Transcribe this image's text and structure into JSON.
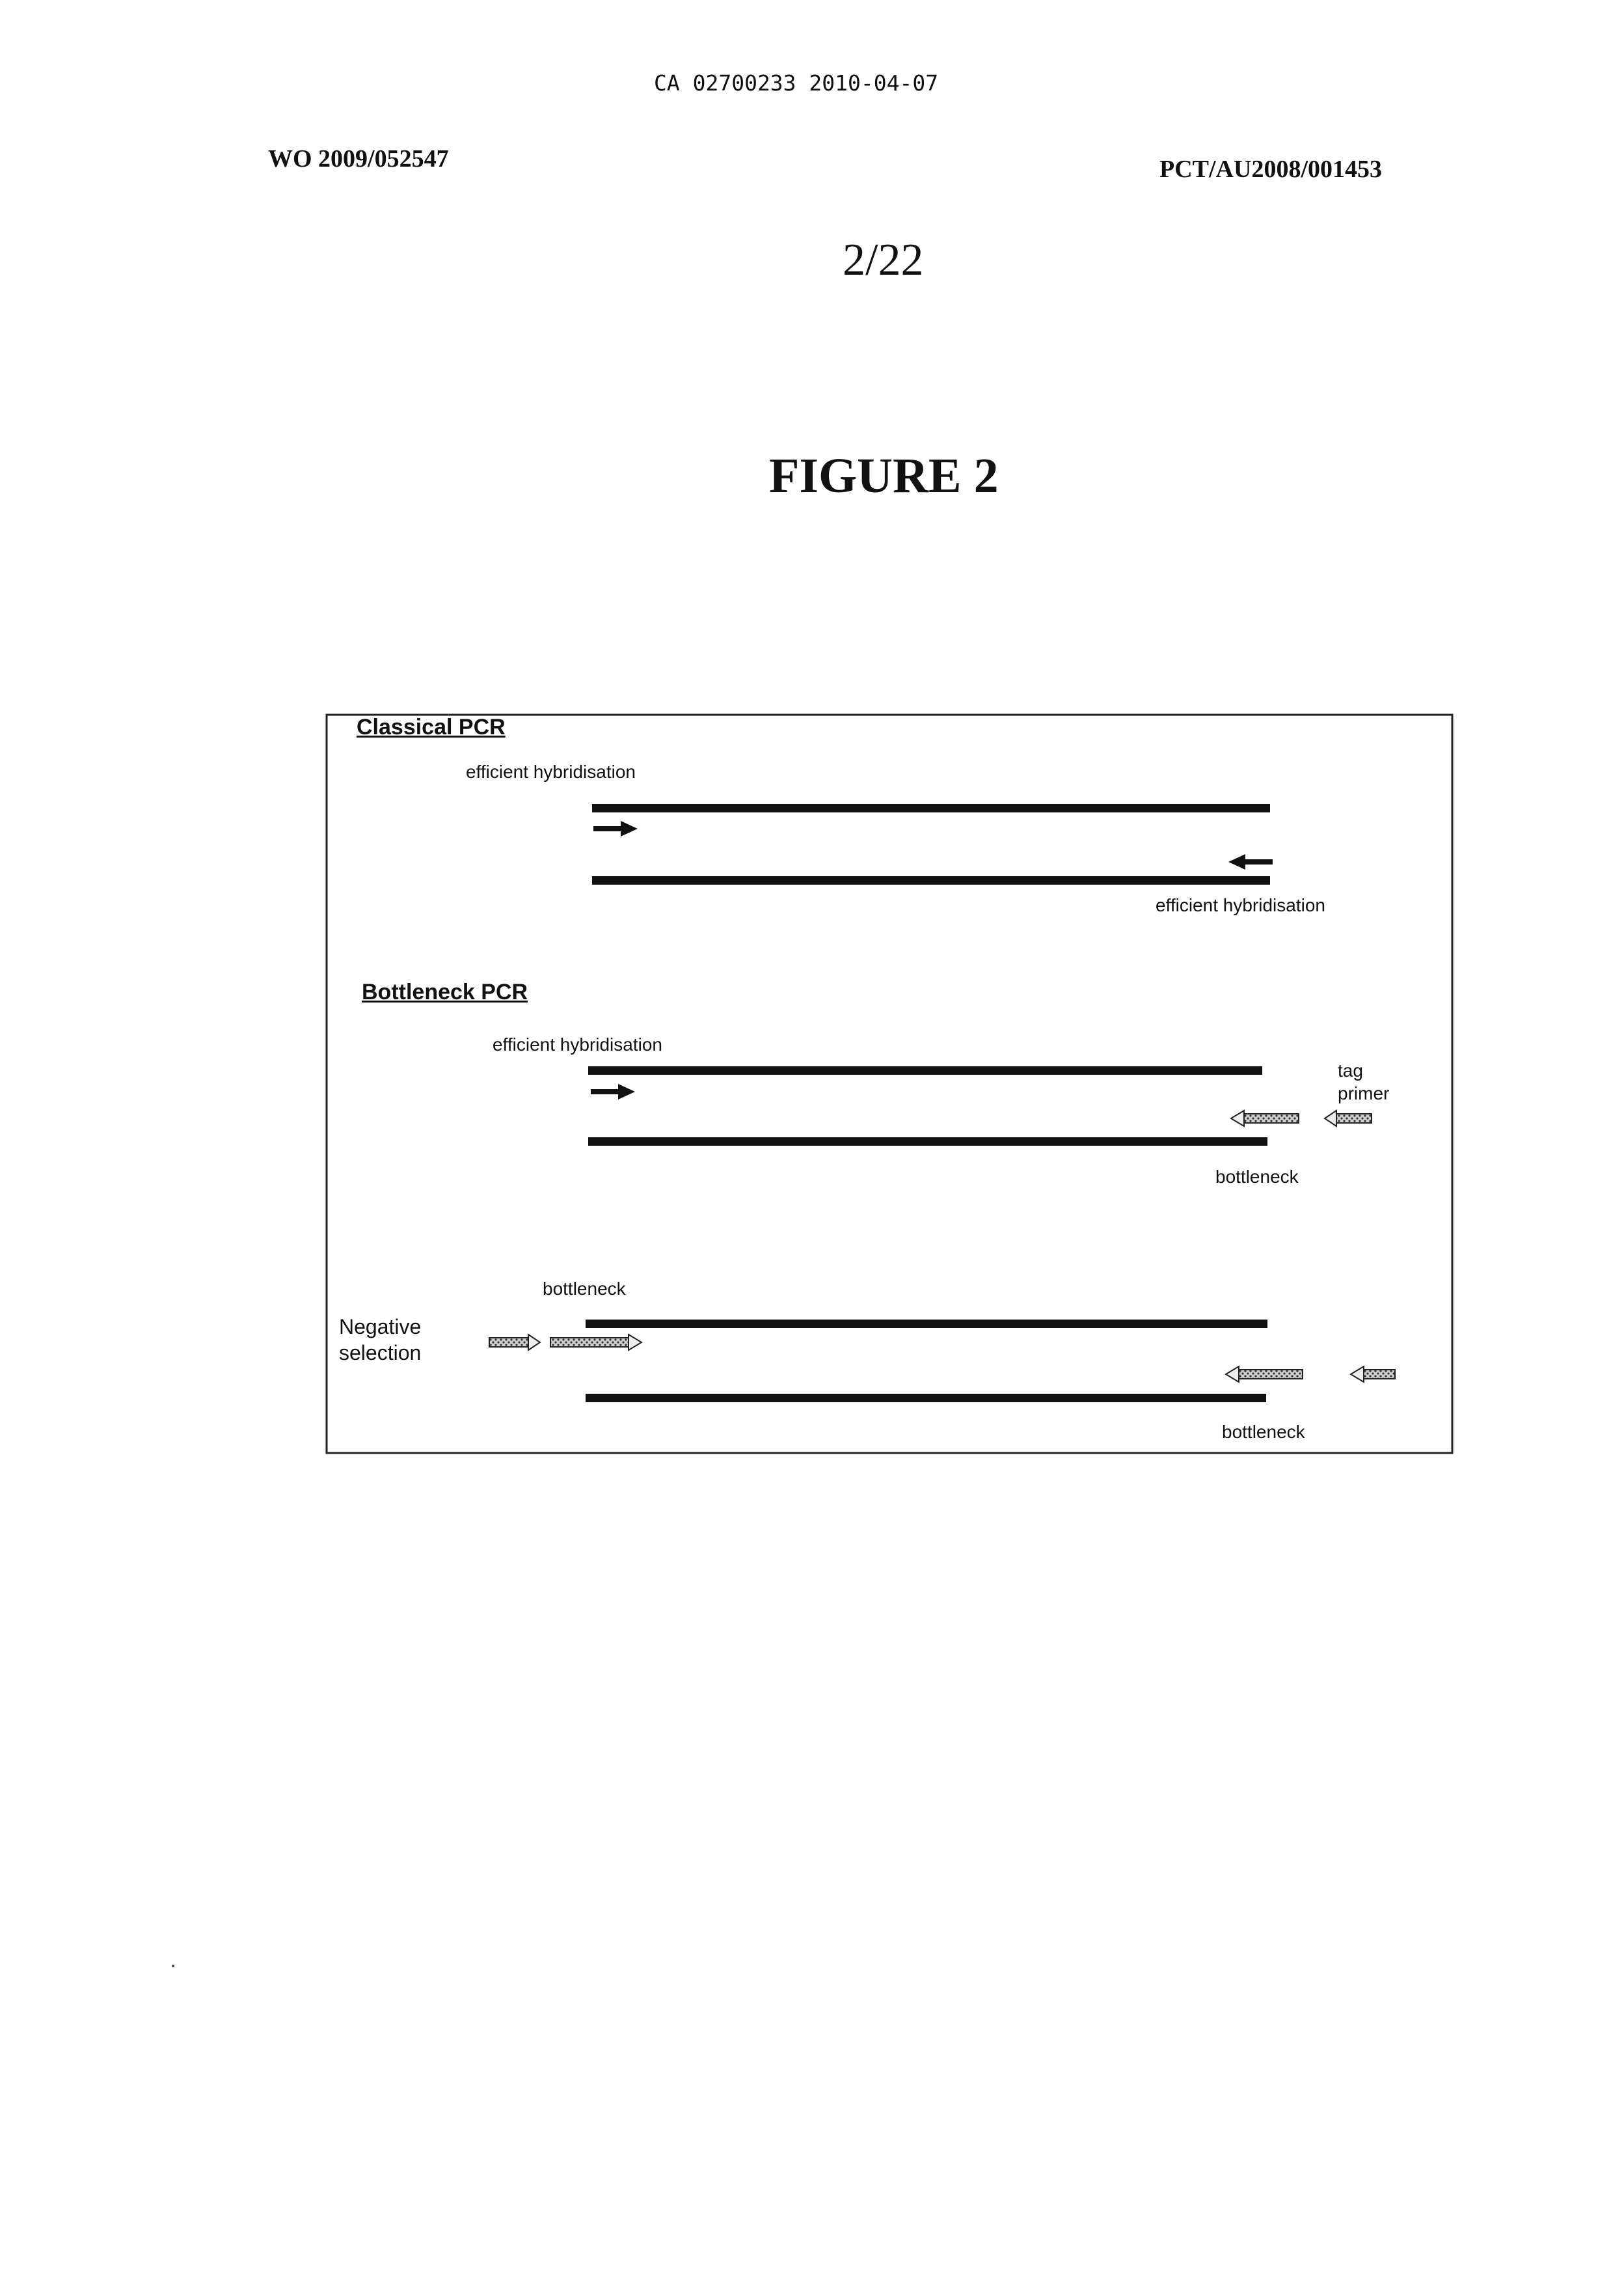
{
  "header": {
    "ca_number": "CA 02700233 2010-04-07",
    "wo_number": "WO 2009/052547",
    "pct_number": "PCT/AU2008/001453",
    "sheet": "2/22"
  },
  "figure": {
    "title": "FIGURE 2",
    "sections": {
      "classical": {
        "heading": "Classical PCR",
        "label_top": "efficient hybridisation",
        "label_bottom": "efficient hybridisation"
      },
      "bottleneck": {
        "heading": "Bottleneck PCR",
        "label_top": "efficient hybridisation",
        "tag_label_1": "tag",
        "tag_label_2": "primer",
        "label_bottom": "bottleneck"
      },
      "negative": {
        "label_top": "bottleneck",
        "side_label_1": "Negative",
        "side_label_2": "selection",
        "label_bottom": "bottleneck"
      }
    }
  }
}
